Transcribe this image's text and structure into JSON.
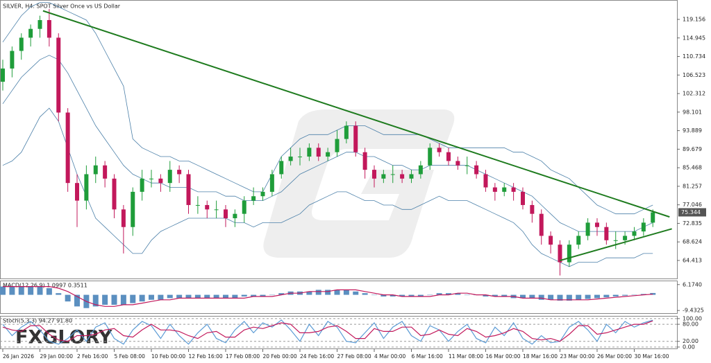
{
  "chart_data": [
    {
      "type": "candlestick",
      "title": "SILVER, H4:  SPOT Silver Once vs US Dollar",
      "xlim": [
        -0.3,
        72.6
      ],
      "ylim": [
        60.16,
        123.56
      ],
      "yticks": [
        119.156,
        114.945,
        110.734,
        106.523,
        102.312,
        98.101,
        93.889,
        89.679,
        85.468,
        81.257,
        77.046,
        72.835,
        68.624,
        64.413
      ],
      "xticks": [
        {
          "value": 0,
          "label": "26 Jan 2026"
        },
        {
          "value": 4,
          "label": "29 Jan 00:00"
        },
        {
          "value": 8,
          "label": "2 Feb 16:00"
        },
        {
          "value": 12,
          "label": "5 Feb 08:00"
        },
        {
          "value": 16,
          "label": "10 Feb 00:00"
        },
        {
          "value": 20,
          "label": "12 Feb 16:00"
        },
        {
          "value": 24,
          "label": "17 Feb 08:00"
        },
        {
          "value": 28,
          "label": "20 Feb 00:00"
        },
        {
          "value": 32,
          "label": "24 Feb 16:00"
        },
        {
          "value": 36,
          "label": "27 Feb 08:00"
        },
        {
          "value": 40,
          "label": "4 Mar 00:00"
        },
        {
          "value": 44,
          "label": "6 Mar 16:00"
        },
        {
          "value": 48,
          "label": "11 Mar 08:00"
        },
        {
          "value": 52,
          "label": "16 Mar 00:00"
        },
        {
          "value": 56,
          "label": "18 Mar 16:00"
        },
        {
          "value": 60,
          "label": "23 Mar 00:00"
        },
        {
          "value": 64,
          "label": "26 Mar 00:00"
        },
        {
          "value": 68,
          "label": "30 Mar 16:00"
        }
      ],
      "up_color": "#1f9d3a",
      "down_color": "#c2185b",
      "band_color": "#4a7fa8",
      "watermark": "FXGLORY",
      "open": [
        105,
        108,
        112,
        115,
        117,
        119,
        115,
        98,
        82,
        78,
        84,
        86,
        83,
        76,
        72,
        80,
        83,
        83,
        82,
        85,
        84,
        77,
        77,
        76,
        76,
        74,
        75,
        78,
        79,
        80,
        84,
        87,
        88,
        88,
        90,
        88,
        89,
        92,
        95,
        89,
        85,
        83,
        84,
        84,
        83,
        84,
        86,
        90,
        89,
        87,
        86,
        86,
        84,
        81,
        80,
        81,
        80,
        77,
        75,
        70,
        68,
        64,
        68,
        70,
        73,
        72,
        69,
        69,
        70,
        71,
        73
      ],
      "high": [
        110,
        113,
        116,
        118,
        120,
        121.5,
        116,
        99,
        84,
        86,
        88,
        87,
        84,
        77,
        81,
        85,
        85,
        84,
        87,
        86,
        85,
        79,
        78,
        78,
        77,
        76,
        79,
        81,
        81,
        85,
        88,
        90,
        90,
        91,
        91,
        90,
        94,
        96,
        96,
        90,
        86,
        85,
        86,
        85,
        85,
        87,
        91,
        91,
        90,
        88,
        88,
        87,
        85,
        82,
        82,
        82,
        81,
        78,
        76,
        71,
        69,
        69,
        71,
        74,
        74,
        73,
        71,
        71,
        72,
        74,
        76
      ],
      "low": [
        103,
        106,
        110,
        113,
        115,
        113,
        96,
        80,
        72,
        76,
        82,
        81,
        74,
        66,
        70,
        78,
        81,
        80,
        80,
        82,
        75,
        75,
        74,
        74,
        72,
        72,
        73,
        77,
        78,
        79,
        83,
        86,
        86,
        87,
        87,
        87,
        88,
        91,
        88,
        83,
        81,
        82,
        82,
        82,
        82,
        83,
        85,
        88,
        86,
        85,
        84,
        83,
        80,
        78,
        79,
        78,
        76,
        73,
        68,
        66,
        61,
        63,
        67,
        69,
        70,
        68,
        67,
        68,
        69,
        70,
        72
      ],
      "close": [
        108,
        112,
        115,
        117,
        119,
        115,
        98,
        82,
        78,
        84,
        86,
        83,
        76,
        72,
        80,
        83,
        83,
        82,
        85,
        84,
        77,
        77,
        76,
        76,
        74,
        75,
        78,
        79,
        80,
        84,
        87,
        88,
        88,
        90,
        88,
        89,
        92,
        95,
        89,
        85,
        83,
        84,
        84,
        83,
        84,
        86,
        90,
        89,
        87,
        86,
        86,
        84,
        81,
        80,
        81,
        80,
        77,
        75,
        70,
        68,
        64,
        68,
        70,
        73,
        72,
        69,
        69,
        70,
        71,
        73,
        75.344
      ],
      "bb_mid": [
        100,
        103,
        106,
        108,
        110,
        111,
        110,
        107,
        103,
        99,
        95,
        92,
        89,
        86,
        84,
        83,
        82,
        82,
        81,
        81,
        81,
        80,
        80,
        80,
        79,
        79,
        78,
        78,
        78,
        79,
        80,
        82,
        84,
        85,
        86,
        87,
        88,
        89,
        89,
        88,
        88,
        87,
        86,
        86,
        85,
        85,
        86,
        86,
        86,
        86,
        86,
        85,
        84,
        83,
        82,
        81,
        80,
        79,
        77,
        75,
        73,
        72,
        71,
        71,
        71,
        71,
        71,
        71,
        71,
        72,
        73
      ],
      "bb_upper": [
        114,
        117,
        120,
        122,
        123,
        123,
        122,
        121,
        120,
        119,
        116,
        112,
        108,
        104,
        92,
        90,
        89,
        88,
        88,
        87,
        87,
        86,
        85,
        84,
        83,
        82,
        81,
        80,
        80,
        84,
        88,
        90,
        92,
        93,
        93,
        93,
        94,
        95,
        95,
        95,
        94,
        93,
        93,
        93,
        93,
        93,
        92,
        91,
        90,
        90,
        90,
        90,
        90,
        90,
        90,
        89,
        89,
        88,
        87,
        85,
        84,
        83,
        81,
        79,
        77,
        76,
        75,
        75,
        75,
        76,
        77
      ],
      "bb_lower": [
        86,
        87,
        89,
        93,
        97,
        99,
        96,
        90,
        84,
        79,
        74,
        72,
        70,
        68,
        66,
        66,
        69,
        71,
        72,
        73,
        74,
        74,
        74,
        74,
        74,
        73,
        73,
        72,
        73,
        73,
        73,
        74,
        75,
        77,
        78,
        79,
        80,
        80,
        79,
        78,
        78,
        77,
        77,
        76,
        76,
        77,
        78,
        79,
        78,
        78,
        78,
        77,
        76,
        75,
        74,
        73,
        71,
        68,
        66,
        65,
        64,
        63,
        64,
        64,
        64,
        65,
        65,
        65,
        65,
        66,
        66
      ],
      "trendlines": [
        {
          "color": "#1e7b1e",
          "points": [
            [
              4.33,
              121.1
            ],
            [
              71.8,
              74.3
            ]
          ]
        },
        {
          "color": "#1e7b1e",
          "points": [
            [
              60.0,
              64.4
            ],
            [
              72.05,
              71.6
            ]
          ]
        }
      ]
    },
    {
      "type": "macd",
      "label": "MACD(12,26,9) 1.0997 0.3511",
      "ylim": [
        -11.03,
        8.17
      ],
      "yticks": [
        {
          "value": 6.174,
          "label": "6.1740"
        },
        {
          "value": -9.4325,
          "label": "-9.4325"
        }
      ],
      "hist_color": "#5b8fc0",
      "signal_color": "#c2185b",
      "hist": [
        5,
        5,
        5,
        5,
        5,
        4,
        1,
        -4,
        -7,
        -8,
        -7,
        -6,
        -6,
        -6,
        -5,
        -4,
        -3,
        -3,
        -2,
        -2,
        -2,
        -2,
        -2,
        -2,
        -2,
        -2,
        -1,
        -1,
        -1,
        0,
        1,
        2,
        2,
        2,
        3,
        3,
        3,
        3,
        2,
        1,
        0,
        -1,
        -1,
        -1,
        -1,
        -1,
        0,
        1,
        1,
        1,
        0,
        0,
        -1,
        -1,
        -1,
        -2,
        -2,
        -2,
        -3,
        -3,
        -3.5,
        -3.5,
        -3,
        -2.5,
        -2,
        -1.5,
        -1,
        -0.5,
        0,
        0.5,
        1.0997
      ],
      "signal": [
        5,
        5,
        5,
        5,
        5,
        5,
        4,
        2,
        -1,
        -4,
        -6,
        -7,
        -7,
        -6,
        -6,
        -5,
        -4,
        -3,
        -3,
        -2,
        -2,
        -2,
        -2,
        -2,
        -2,
        -2,
        -2,
        -1,
        -1,
        -1,
        0,
        1,
        1,
        2,
        2,
        2,
        3,
        3,
        3,
        2,
        1,
        0,
        0,
        -1,
        -1,
        -1,
        -1,
        0,
        0,
        1,
        1,
        0,
        0,
        -1,
        -1,
        -1,
        -2,
        -2,
        -2,
        -3,
        -3,
        -3,
        -3,
        -3,
        -2.5,
        -2,
        -1.5,
        -1,
        -0.5,
        0,
        0.3511
      ]
    },
    {
      "type": "stochastic",
      "label": "Stoch(5,3,3) 94.27 91.80",
      "ylim": [
        -5,
        107
      ],
      "yticks": [
        {
          "value": 100,
          "label": "100.00"
        },
        {
          "value": 80,
          "label": "80.00"
        },
        {
          "value": 20,
          "label": "20.00"
        },
        {
          "value": 0,
          "label": "0.00"
        }
      ],
      "k_color": "#5b9bd5",
      "d_color": "#c2185b",
      "k": [
        80,
        40,
        70,
        90,
        60,
        20,
        10,
        30,
        60,
        20,
        70,
        85,
        30,
        10,
        60,
        90,
        75,
        30,
        80,
        40,
        10,
        50,
        80,
        30,
        15,
        60,
        90,
        50,
        85,
        70,
        95,
        60,
        20,
        80,
        40,
        90,
        70,
        20,
        15,
        50,
        85,
        30,
        70,
        90,
        40,
        20,
        75,
        60,
        20,
        55,
        80,
        30,
        15,
        70,
        40,
        85,
        30,
        10,
        40,
        15,
        20,
        70,
        90,
        60,
        20,
        80,
        50,
        90,
        70,
        85,
        94.27
      ],
      "d": [
        70,
        60,
        55,
        75,
        75,
        45,
        25,
        20,
        40,
        40,
        45,
        60,
        65,
        40,
        35,
        60,
        80,
        60,
        60,
        55,
        40,
        30,
        50,
        55,
        35,
        35,
        60,
        70,
        65,
        75,
        85,
        80,
        50,
        50,
        55,
        70,
        75,
        55,
        30,
        30,
        65,
        55,
        55,
        70,
        70,
        40,
        45,
        60,
        45,
        40,
        65,
        55,
        35,
        40,
        50,
        65,
        55,
        30,
        25,
        30,
        20,
        45,
        75,
        75,
        45,
        50,
        60,
        70,
        80,
        80,
        91.8
      ]
    }
  ]
}
